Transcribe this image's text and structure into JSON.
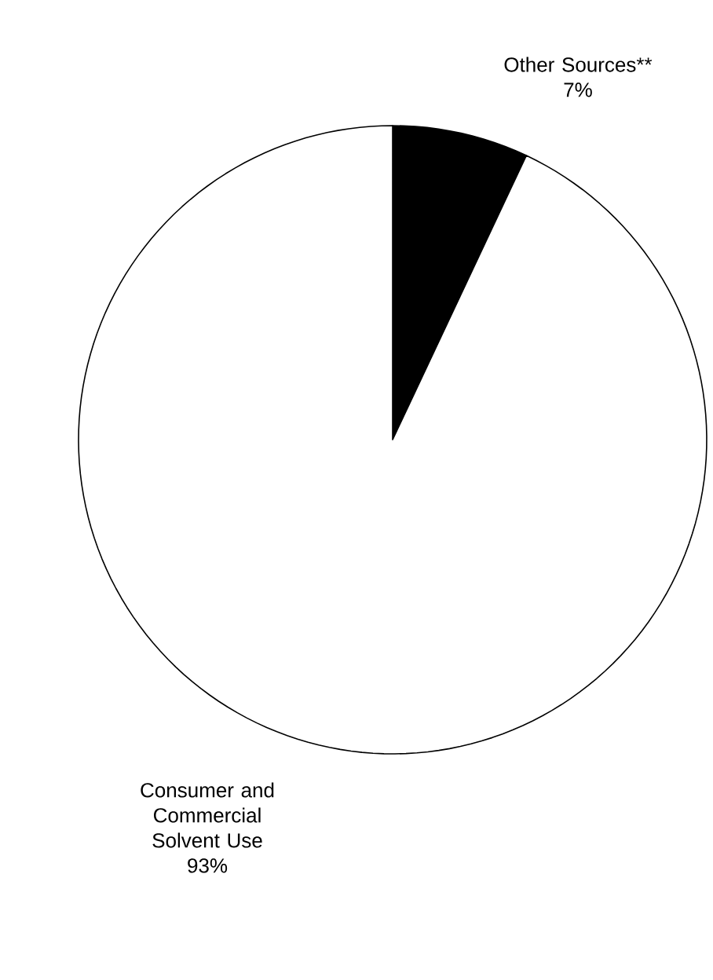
{
  "chart_data": {
    "type": "pie",
    "categories": [
      "Other Sources**",
      "Consumer and Commercial Solvent Use"
    ],
    "values": [
      7,
      93
    ],
    "value_labels": [
      "7%",
      "93%"
    ],
    "colors": [
      "#000000",
      "#ffffff"
    ]
  }
}
